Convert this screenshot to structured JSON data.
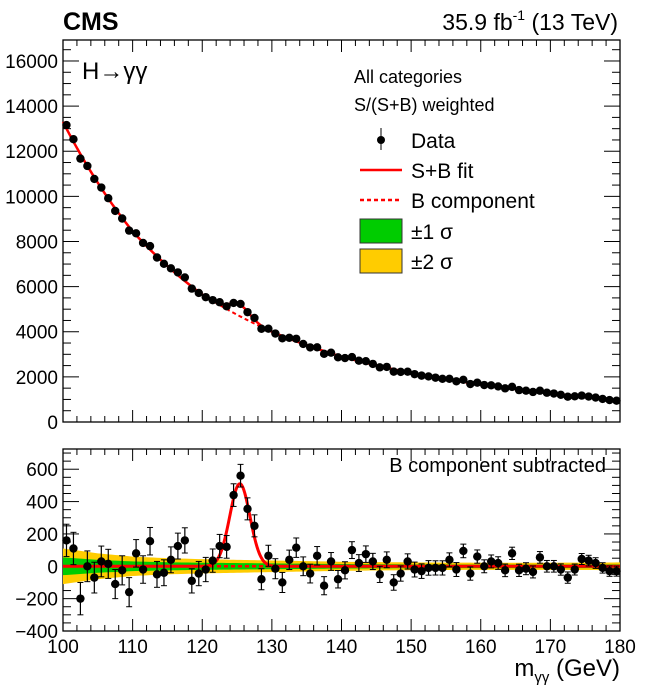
{
  "header": {
    "experiment": "CMS",
    "lumi_main": "35.9 fb",
    "lumi_sup": "-1",
    "energy": " (13 TeV)"
  },
  "colors": {
    "fit": "#ff0000",
    "sigma1": "#00cc00",
    "sigma2": "#ffcc00",
    "data": "#000000"
  },
  "chart_data": [
    {
      "type": "scatter",
      "panel": "main",
      "annotation": "H→γγ",
      "legend_header": [
        "All categories",
        "S/(S+B) weighted"
      ],
      "legend": [
        {
          "label": "Data",
          "style": "marker-errorbar"
        },
        {
          "label": "S+B fit",
          "style": "solid-red"
        },
        {
          "label": "B component",
          "style": "dashed-red"
        },
        {
          "label": "±1 σ",
          "style": "green-box"
        },
        {
          "label": "±2 σ",
          "style": "yellow-box"
        }
      ],
      "legend_placement": "top-right",
      "xlim": [
        100,
        180
      ],
      "ylim": [
        0,
        16930
      ],
      "yticks": [
        "0",
        "2000",
        "4000",
        "6000",
        "8000",
        "10000",
        "12000",
        "14000",
        "16000"
      ],
      "x": [
        100.5,
        101.5,
        102.5,
        103.5,
        104.5,
        105.5,
        106.5,
        107.5,
        108.5,
        109.5,
        110.5,
        111.5,
        112.5,
        113.5,
        114.5,
        115.5,
        116.5,
        117.5,
        118.5,
        119.5,
        120.5,
        121.5,
        122.5,
        123.5,
        124.5,
        125.5,
        126.5,
        127.5,
        128.5,
        129.5,
        130.5,
        131.5,
        132.5,
        133.5,
        134.5,
        135.5,
        136.5,
        137.5,
        138.5,
        139.5,
        140.5,
        141.5,
        142.5,
        143.5,
        144.5,
        145.5,
        146.5,
        147.5,
        148.5,
        149.5,
        150.5,
        151.5,
        152.5,
        153.5,
        154.5,
        155.5,
        156.5,
        157.5,
        158.5,
        159.5,
        160.5,
        161.5,
        162.5,
        163.5,
        164.5,
        165.5,
        166.5,
        167.5,
        168.5,
        169.5,
        170.5,
        171.5,
        172.5,
        173.5,
        174.5,
        175.5,
        176.5,
        177.5,
        178.5,
        179.5
      ],
      "y": [
        13161,
        12534,
        11673,
        11347,
        10773,
        10392,
        9918,
        9354,
        9019,
        8483,
        8362,
        7935,
        7796,
        7290,
        7010,
        6812,
        6630,
        6408,
        5912,
        5720,
        5533,
        5400,
        5308,
        5127,
        5277,
        5233,
        4869,
        4611,
        4133,
        4135,
        3921,
        3711,
        3731,
        3689,
        3461,
        3306,
        3310,
        3022,
        3073,
        2866,
        2833,
        2877,
        2717,
        2695,
        2575,
        2422,
        2442,
        2233,
        2221,
        2231,
        2121,
        2055,
        2019,
        1966,
        1914,
        1913,
        1803,
        1870,
        1683,
        1743,
        1639,
        1627,
        1576,
        1491,
        1557,
        1414,
        1387,
        1331,
        1386,
        1297,
        1262,
        1206,
        1121,
        1138,
        1170,
        1128,
        1082,
        1022,
        972,
        944
      ],
      "b_component": {
        "x": [
          100,
          110,
          120,
          130,
          140,
          150,
          160,
          170,
          180
        ],
        "y": [
          13300,
          8450,
          5650,
          4000,
          2900,
          2170,
          1660,
          1280,
          960
        ]
      },
      "signal": {
        "mean": 125.4,
        "sigma": 1.45,
        "amplitude": 510
      }
    },
    {
      "type": "scatter",
      "panel": "ratio",
      "annotation": "B component subtracted",
      "xlabel": "m",
      "xlabel_sub": "γγ",
      "xlabel_unit": " (GeV)",
      "xlim": [
        100,
        180
      ],
      "ylim": [
        -400,
        725
      ],
      "xticks": [
        "100",
        "110",
        "120",
        "130",
        "140",
        "150",
        "160",
        "170",
        "180"
      ],
      "yticks": [
        "−400",
        "−200",
        "0",
        "200",
        "400",
        "600"
      ],
      "residuals": [
        160,
        110,
        -200,
        0,
        -70,
        30,
        15,
        -110,
        -25,
        -160,
        80,
        -20,
        155,
        -50,
        -40,
        40,
        125,
        160,
        -90,
        -45,
        -20,
        35,
        125,
        120,
        440,
        560,
        355,
        250,
        -80,
        65,
        -15,
        -100,
        40,
        115,
        0,
        -45,
        65,
        -120,
        30,
        -80,
        -25,
        100,
        20,
        75,
        30,
        -50,
        40,
        -100,
        -45,
        30,
        -20,
        -30,
        -10,
        -10,
        -10,
        40,
        -20,
        95,
        -45,
        60,
        0,
        30,
        20,
        -25,
        80,
        -25,
        -15,
        -35,
        55,
        0,
        0,
        -20,
        -70,
        -20,
        45,
        35,
        20,
        -10,
        -30,
        -30
      ],
      "errors": [
        100,
        100,
        100,
        95,
        95,
        95,
        90,
        90,
        90,
        90,
        85,
        85,
        85,
        80,
        80,
        80,
        80,
        78,
        75,
        75,
        75,
        72,
        72,
        70,
        70,
        70,
        68,
        68,
        65,
        65,
        62,
        62,
        60,
        60,
        58,
        58,
        57,
        56,
        55,
        54,
        53,
        52,
        52,
        51,
        50,
        50,
        49,
        48,
        47,
        47,
        46,
        45,
        45,
        44,
        44,
        43,
        43,
        42,
        41,
        41,
        40,
        40,
        39,
        39,
        38,
        38,
        37,
        37,
        36,
        36,
        36,
        35,
        35,
        34,
        34,
        33,
        33,
        32,
        32,
        31
      ],
      "bands": {
        "x": [
          100,
          105,
          110,
          115,
          120,
          130,
          140,
          150,
          160,
          170,
          180
        ],
        "sigma1": [
          55,
          40,
          30,
          25,
          22,
          18,
          14,
          12,
          11,
          11,
          12
        ],
        "sigma2": [
          110,
          80,
          60,
          50,
          44,
          36,
          28,
          24,
          22,
          22,
          24
        ]
      }
    }
  ]
}
